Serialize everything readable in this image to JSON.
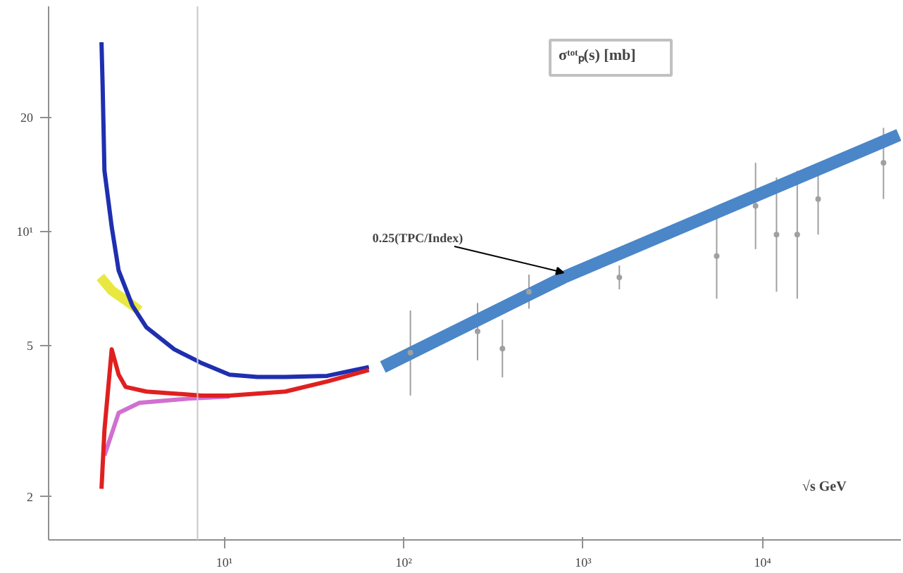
{
  "chart_data": {
    "type": "line",
    "title": "σᵗᵒᵗₚ(s) [mb]",
    "xlabel": "√s GeV",
    "log": "xy",
    "grid": false,
    "marker": "none",
    "xlim": [
      1.05,
      59000
    ],
    "ylim": [
      1.54,
      39.3
    ],
    "xticks": [
      {
        "value": 10,
        "label": "10¹"
      },
      {
        "value": 100,
        "label": "10²"
      },
      {
        "value": 1000,
        "label": "10³"
      },
      {
        "value": 10000,
        "label": "10⁴"
      }
    ],
    "yticks": [
      {
        "value": 2,
        "label": "2"
      },
      {
        "value": 5,
        "label": "5"
      },
      {
        "value": 10,
        "label": "10¹"
      },
      20
    ],
    "ref_lines": [
      {
        "axis": "x",
        "value": 7.1,
        "color": "#c8c8c8"
      }
    ],
    "annotations": [
      {
        "text": "0.25(TPC/Index)",
        "x": 778,
        "y": 7.58
      }
    ],
    "series": [
      {
        "color": "#e8e840",
        "x": [
          2.04,
          2.36,
          2.82,
          3.37
        ],
        "values": [
          7.6,
          7.0,
          6.6,
          6.2
        ]
      },
      {
        "color": "#1f2fb0",
        "x": [
          2.07,
          2.1,
          2.15,
          2.36,
          2.58,
          3.08,
          3.68,
          5.26,
          7.52,
          10.7,
          15.3,
          21.9,
          37.5,
          64
        ],
        "values": [
          31.6,
          24.4,
          14.5,
          10.3,
          7.9,
          6.38,
          5.6,
          4.9,
          4.5,
          4.2,
          4.14,
          4.14,
          4.17,
          4.4
        ]
      },
      {
        "color": "#d070d0",
        "x": [
          2.15,
          2.58,
          3.37,
          6.29,
          10.7
        ],
        "values": [
          2.57,
          3.33,
          3.54,
          3.63,
          3.68
        ]
      },
      {
        "color": "#e02020",
        "x": [
          2.07,
          2.15,
          2.36,
          2.58,
          2.82,
          3.68,
          7.52,
          10.7,
          21.9,
          37.5,
          64
        ],
        "values": [
          2.1,
          3.0,
          4.9,
          4.2,
          3.9,
          3.79,
          3.7,
          3.7,
          3.79,
          4.03,
          4.32
        ]
      },
      {
        "color": "#4a86c8",
        "x": [
          76.6,
          778,
          57500
        ],
        "values": [
          4.4,
          7.58,
          18.0
        ]
      },
      {
        "type": "scatter",
        "color": "#a0a0a0",
        "x": [
          109,
          258,
          355,
          499,
          1592,
          5550,
          9140,
          11960,
          15600,
          20400,
          47200
        ],
        "values": [
          4.8,
          5.46,
          4.92,
          6.95,
          7.58,
          8.63,
          11.7,
          9.83,
          9.83,
          12.2,
          15.2
        ],
        "errors": [
          [
            3.7,
            6.2
          ],
          [
            4.58,
            6.49
          ],
          [
            4.13,
            5.86
          ],
          [
            6.27,
            7.71
          ],
          [
            7.05,
            8.15
          ],
          [
            6.66,
            11.2
          ],
          [
            9.0,
            15.2
          ],
          [
            6.95,
            13.9
          ],
          [
            6.66,
            14.5
          ],
          [
            9.83,
            15.1
          ],
          [
            12.2,
            18.8
          ]
        ]
      }
    ]
  }
}
